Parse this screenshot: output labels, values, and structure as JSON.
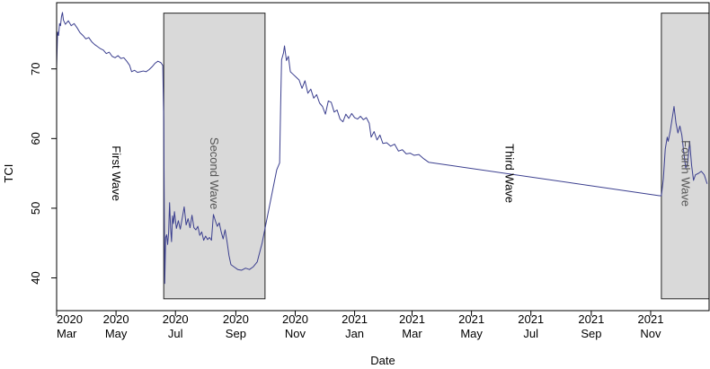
{
  "chart_data": {
    "type": "line",
    "xlabel": "Date",
    "ylabel": "TCI",
    "yticks": [
      40,
      50,
      60,
      70
    ],
    "ylim": [
      35.3,
      79.5
    ],
    "xlim": [
      "2020-03-01",
      "2021-12-31"
    ],
    "xticks": [
      {
        "year": "2020",
        "month": "Mar",
        "date": "2020-03-01"
      },
      {
        "year": "2020",
        "month": "May",
        "date": "2020-05-01"
      },
      {
        "year": "2020",
        "month": "Jul",
        "date": "2020-07-01"
      },
      {
        "year": "2020",
        "month": "Sep",
        "date": "2020-09-01"
      },
      {
        "year": "2020",
        "month": "Nov",
        "date": "2020-11-01"
      },
      {
        "year": "2021",
        "month": "Jan",
        "date": "2021-01-01"
      },
      {
        "year": "2021",
        "month": "Mar",
        "date": "2021-03-01"
      },
      {
        "year": "2021",
        "month": "May",
        "date": "2021-05-01"
      },
      {
        "year": "2021",
        "month": "Jul",
        "date": "2021-07-01"
      },
      {
        "year": "2021",
        "month": "Sep",
        "date": "2021-09-01"
      },
      {
        "year": "2021",
        "month": "Nov",
        "date": "2021-11-01"
      }
    ],
    "waves": [
      {
        "label": "First Wave",
        "shaded": false,
        "label_date": "2020-04-27",
        "label_y": 55
      },
      {
        "label": "Second Wave",
        "shaded": true,
        "start": "2020-06-19",
        "end": "2020-10-01",
        "ymin": 37,
        "ymax": 78,
        "label_date": "2020-08-06",
        "label_y": 55
      },
      {
        "label": "Third Wave",
        "shaded": false,
        "label_date": "2021-06-05",
        "label_y": 55
      },
      {
        "label": "Fourth Wave",
        "shaded": true,
        "start": "2021-11-12",
        "end": "2021-12-31",
        "ymin": 37,
        "ymax": 78,
        "label_date": "2021-12-03",
        "label_y": 55
      }
    ],
    "line_color": "#3b3f8f",
    "shade_color": "#d9d9d9",
    "series": [
      {
        "points": [
          [
            "2020-03-01",
            70.2
          ],
          [
            "2020-03-02",
            75.3
          ],
          [
            "2020-03-03",
            74.8
          ],
          [
            "2020-03-04",
            76.5
          ],
          [
            "2020-03-05",
            76.2
          ],
          [
            "2020-03-06",
            77.5
          ],
          [
            "2020-03-07",
            78.1
          ],
          [
            "2020-03-08",
            77.0
          ],
          [
            "2020-03-10",
            76.4
          ],
          [
            "2020-03-13",
            76.9
          ],
          [
            "2020-03-16",
            76.2
          ],
          [
            "2020-03-19",
            76.5
          ],
          [
            "2020-03-22",
            75.9
          ],
          [
            "2020-03-25",
            75.2
          ],
          [
            "2020-03-28",
            74.8
          ],
          [
            "2020-03-31",
            74.3
          ],
          [
            "2020-04-03",
            74.5
          ],
          [
            "2020-04-06",
            73.9
          ],
          [
            "2020-04-09",
            73.5
          ],
          [
            "2020-04-12",
            73.2
          ],
          [
            "2020-04-15",
            72.9
          ],
          [
            "2020-04-18",
            72.7
          ],
          [
            "2020-04-21",
            72.2
          ],
          [
            "2020-04-24",
            72.4
          ],
          [
            "2020-04-27",
            71.8
          ],
          [
            "2020-04-30",
            71.6
          ],
          [
            "2020-05-03",
            71.9
          ],
          [
            "2020-05-06",
            71.5
          ],
          [
            "2020-05-09",
            71.6
          ],
          [
            "2020-05-12",
            71.1
          ],
          [
            "2020-05-15",
            70.5
          ],
          [
            "2020-05-17",
            69.6
          ],
          [
            "2020-05-20",
            69.8
          ],
          [
            "2020-05-23",
            69.5
          ],
          [
            "2020-05-26",
            69.6
          ],
          [
            "2020-05-29",
            69.7
          ],
          [
            "2020-06-01",
            69.6
          ],
          [
            "2020-06-04",
            69.9
          ],
          [
            "2020-06-07",
            70.3
          ],
          [
            "2020-06-10",
            70.8
          ],
          [
            "2020-06-13",
            71.1
          ],
          [
            "2020-06-16",
            70.9
          ],
          [
            "2020-06-18",
            70.5
          ],
          [
            "2020-06-19",
            62.5
          ],
          [
            "2020-06-20",
            39.2
          ],
          [
            "2020-06-21",
            45.8
          ],
          [
            "2020-06-22",
            46.2
          ],
          [
            "2020-06-23",
            44.8
          ],
          [
            "2020-06-24",
            46.5
          ],
          [
            "2020-06-25",
            50.8
          ],
          [
            "2020-06-26",
            47.2
          ],
          [
            "2020-06-27",
            45.2
          ],
          [
            "2020-06-28",
            48.9
          ],
          [
            "2020-06-29",
            47.8
          ],
          [
            "2020-06-30",
            49.5
          ],
          [
            "2020-07-02",
            47.1
          ],
          [
            "2020-07-04",
            48.2
          ],
          [
            "2020-07-06",
            47.0
          ],
          [
            "2020-07-08",
            48.6
          ],
          [
            "2020-07-10",
            50.2
          ],
          [
            "2020-07-12",
            47.6
          ],
          [
            "2020-07-14",
            48.5
          ],
          [
            "2020-07-16",
            47.2
          ],
          [
            "2020-07-18",
            49.0
          ],
          [
            "2020-07-20",
            47.2
          ],
          [
            "2020-07-22",
            46.9
          ],
          [
            "2020-07-24",
            47.4
          ],
          [
            "2020-07-26",
            46.1
          ],
          [
            "2020-07-28",
            46.6
          ],
          [
            "2020-07-30",
            45.4
          ],
          [
            "2020-08-01",
            46.0
          ],
          [
            "2020-08-03",
            45.5
          ],
          [
            "2020-08-05",
            45.8
          ],
          [
            "2020-08-07",
            45.4
          ],
          [
            "2020-08-09",
            49.1
          ],
          [
            "2020-08-11",
            48.2
          ],
          [
            "2020-08-13",
            47.4
          ],
          [
            "2020-08-15",
            47.9
          ],
          [
            "2020-08-17",
            46.6
          ],
          [
            "2020-08-19",
            45.6
          ],
          [
            "2020-08-21",
            46.9
          ],
          [
            "2020-08-23",
            45.2
          ],
          [
            "2020-08-25",
            43.2
          ],
          [
            "2020-08-27",
            41.9
          ],
          [
            "2020-08-30",
            41.6
          ],
          [
            "2020-09-03",
            41.2
          ],
          [
            "2020-09-07",
            41.1
          ],
          [
            "2020-09-11",
            41.4
          ],
          [
            "2020-09-15",
            41.2
          ],
          [
            "2020-09-19",
            41.6
          ],
          [
            "2020-09-23",
            42.3
          ],
          [
            "2020-09-28",
            45.0
          ],
          [
            "2020-10-03",
            48.5
          ],
          [
            "2020-10-08",
            52.0
          ],
          [
            "2020-10-13",
            55.5
          ],
          [
            "2020-10-16",
            56.5
          ],
          [
            "2020-10-17",
            64.5
          ],
          [
            "2020-10-18",
            71.3
          ],
          [
            "2020-10-20",
            72.3
          ],
          [
            "2020-10-21",
            73.3
          ],
          [
            "2020-10-23",
            71.2
          ],
          [
            "2020-10-25",
            71.8
          ],
          [
            "2020-10-27",
            69.6
          ],
          [
            "2020-10-30",
            69.2
          ],
          [
            "2020-11-02",
            68.8
          ],
          [
            "2020-11-05",
            68.4
          ],
          [
            "2020-11-08",
            67.2
          ],
          [
            "2020-11-11",
            68.3
          ],
          [
            "2020-11-14",
            66.5
          ],
          [
            "2020-11-17",
            67.1
          ],
          [
            "2020-11-20",
            65.8
          ],
          [
            "2020-11-23",
            66.3
          ],
          [
            "2020-11-26",
            65.1
          ],
          [
            "2020-11-29",
            64.6
          ],
          [
            "2020-12-02",
            63.5
          ],
          [
            "2020-12-05",
            65.4
          ],
          [
            "2020-12-08",
            65.2
          ],
          [
            "2020-12-11",
            63.8
          ],
          [
            "2020-12-14",
            64.1
          ],
          [
            "2020-12-17",
            62.8
          ],
          [
            "2020-12-20",
            62.4
          ],
          [
            "2020-12-23",
            63.5
          ],
          [
            "2020-12-26",
            62.9
          ],
          [
            "2020-12-29",
            63.6
          ],
          [
            "2021-01-01",
            63.0
          ],
          [
            "2021-01-04",
            62.8
          ],
          [
            "2021-01-07",
            63.2
          ],
          [
            "2021-01-10",
            62.7
          ],
          [
            "2021-01-13",
            63.0
          ],
          [
            "2021-01-16",
            62.2
          ],
          [
            "2021-01-18",
            60.2
          ],
          [
            "2021-01-21",
            61.0
          ],
          [
            "2021-01-24",
            59.8
          ],
          [
            "2021-01-27",
            60.5
          ],
          [
            "2021-01-30",
            59.3
          ],
          [
            "2021-02-03",
            59.4
          ],
          [
            "2021-02-07",
            58.9
          ],
          [
            "2021-02-11",
            59.2
          ],
          [
            "2021-02-15",
            58.2
          ],
          [
            "2021-02-19",
            58.4
          ],
          [
            "2021-02-23",
            57.8
          ],
          [
            "2021-02-27",
            57.9
          ],
          [
            "2021-03-03",
            57.6
          ],
          [
            "2021-03-08",
            57.7
          ],
          [
            "2021-03-13",
            57.1
          ],
          [
            "2021-03-18",
            56.6
          ],
          [
            "2021-11-10",
            51.8
          ],
          [
            "2021-11-12",
            51.8
          ],
          [
            "2021-11-14",
            54.2
          ],
          [
            "2021-11-16",
            58.5
          ],
          [
            "2021-11-18",
            60.2
          ],
          [
            "2021-11-19",
            59.6
          ],
          [
            "2021-11-21",
            61.0
          ],
          [
            "2021-11-23",
            62.8
          ],
          [
            "2021-11-25",
            64.6
          ],
          [
            "2021-11-27",
            62.2
          ],
          [
            "2021-11-29",
            60.8
          ],
          [
            "2021-12-01",
            61.8
          ],
          [
            "2021-12-03",
            60.5
          ],
          [
            "2021-12-05",
            58.0
          ],
          [
            "2021-12-07",
            55.8
          ],
          [
            "2021-12-09",
            56.5
          ],
          [
            "2021-12-11",
            59.6
          ],
          [
            "2021-12-13",
            56.2
          ],
          [
            "2021-12-15",
            54.0
          ],
          [
            "2021-12-17",
            54.8
          ],
          [
            "2021-12-20",
            55.0
          ],
          [
            "2021-12-23",
            55.3
          ],
          [
            "2021-12-26",
            54.8
          ],
          [
            "2021-12-29",
            53.5
          ]
        ]
      }
    ]
  }
}
